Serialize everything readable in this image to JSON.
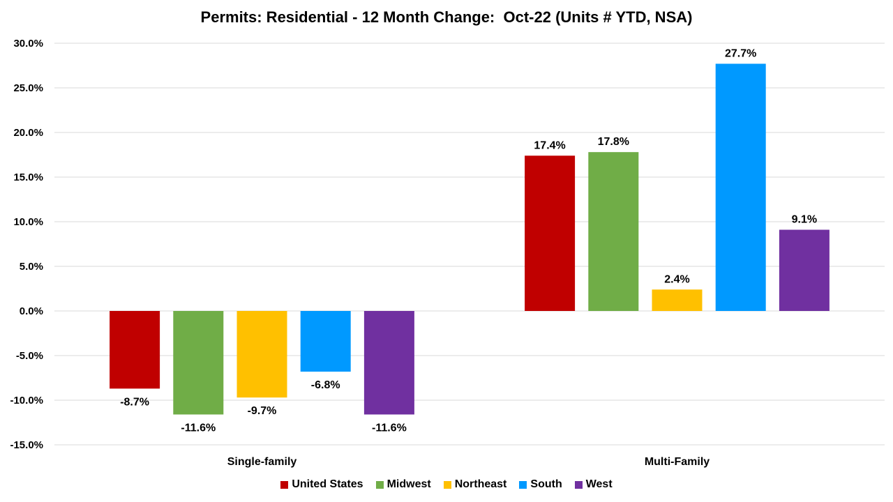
{
  "chart_data": {
    "type": "bar",
    "title": "Permits: Residential - 12 Month Change:  Oct-22 (Units # YTD, NSA)",
    "categories": [
      "Single-family",
      "Multi-Family"
    ],
    "series": [
      {
        "name": "United States",
        "color": "#C00000",
        "values": [
          -8.7,
          17.4
        ],
        "labels": [
          "-8.7%",
          "17.4%"
        ]
      },
      {
        "name": "Midwest",
        "color": "#70AD47",
        "values": [
          -11.6,
          17.8
        ],
        "labels": [
          "-11.6%",
          "17.8%"
        ]
      },
      {
        "name": "Northeast",
        "color": "#FFC000",
        "values": [
          -9.7,
          2.4
        ],
        "labels": [
          "-9.7%",
          "2.4%"
        ]
      },
      {
        "name": "South",
        "color": "#0099FF",
        "values": [
          -6.8,
          27.7
        ],
        "labels": [
          "-6.8%",
          "27.7%"
        ]
      },
      {
        "name": "West",
        "color": "#7030A0",
        "values": [
          -11.6,
          9.1
        ],
        "labels": [
          "-11.6%",
          "9.1%"
        ]
      }
    ],
    "ylim": [
      -15,
      30
    ],
    "yticks": [
      30,
      25,
      20,
      15,
      10,
      5,
      0,
      -5,
      -10,
      -15
    ],
    "ytick_labels": [
      "30.0%",
      "25.0%",
      "20.0%",
      "15.0%",
      "10.0%",
      "5.0%",
      "0.0%",
      "-5.0%",
      "-10.0%",
      "-15.0%"
    ],
    "grid": true,
    "legend_position": "bottom"
  }
}
